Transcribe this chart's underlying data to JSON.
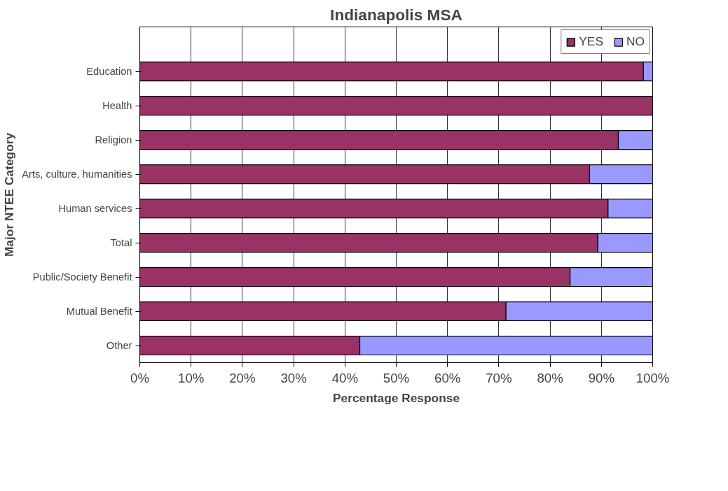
{
  "chart_data": {
    "type": "bar",
    "orientation": "horizontal",
    "stacked": true,
    "title": "Indianapolis MSA",
    "xlabel": "Percentage Response",
    "ylabel": "Major NTEE Category",
    "categories": [
      "Education",
      "Health",
      "Religion",
      "Arts, culture, humanities",
      "Human services",
      "Total",
      "Public/Society Benefit",
      "Mutual Benefit",
      "Other"
    ],
    "series": [
      {
        "name": "YES",
        "color": "#993366",
        "values": [
          98.2,
          100,
          93.3,
          87.7,
          91.3,
          89.3,
          83.9,
          71.4,
          42.9
        ]
      },
      {
        "name": "NO",
        "color": "#9999ff",
        "values": [
          1.8,
          null,
          6.7,
          12.3,
          8.7,
          10.7,
          16.1,
          28.6,
          57.1
        ]
      }
    ],
    "xlim": [
      0,
      100
    ],
    "xticks": [
      {
        "value": 0,
        "label": "0%"
      },
      {
        "value": 10,
        "label": "10%"
      },
      {
        "value": 20,
        "label": "20%"
      },
      {
        "value": 30,
        "label": "30%"
      },
      {
        "value": 40,
        "label": "40%"
      },
      {
        "value": 50,
        "label": "50%"
      },
      {
        "value": 60,
        "label": "60%"
      },
      {
        "value": 70,
        "label": "70%"
      },
      {
        "value": 80,
        "label": "80%"
      },
      {
        "value": 90,
        "label": "90%"
      },
      {
        "value": 100,
        "label": "100%"
      }
    ],
    "grid": "x",
    "legend": "top right"
  }
}
